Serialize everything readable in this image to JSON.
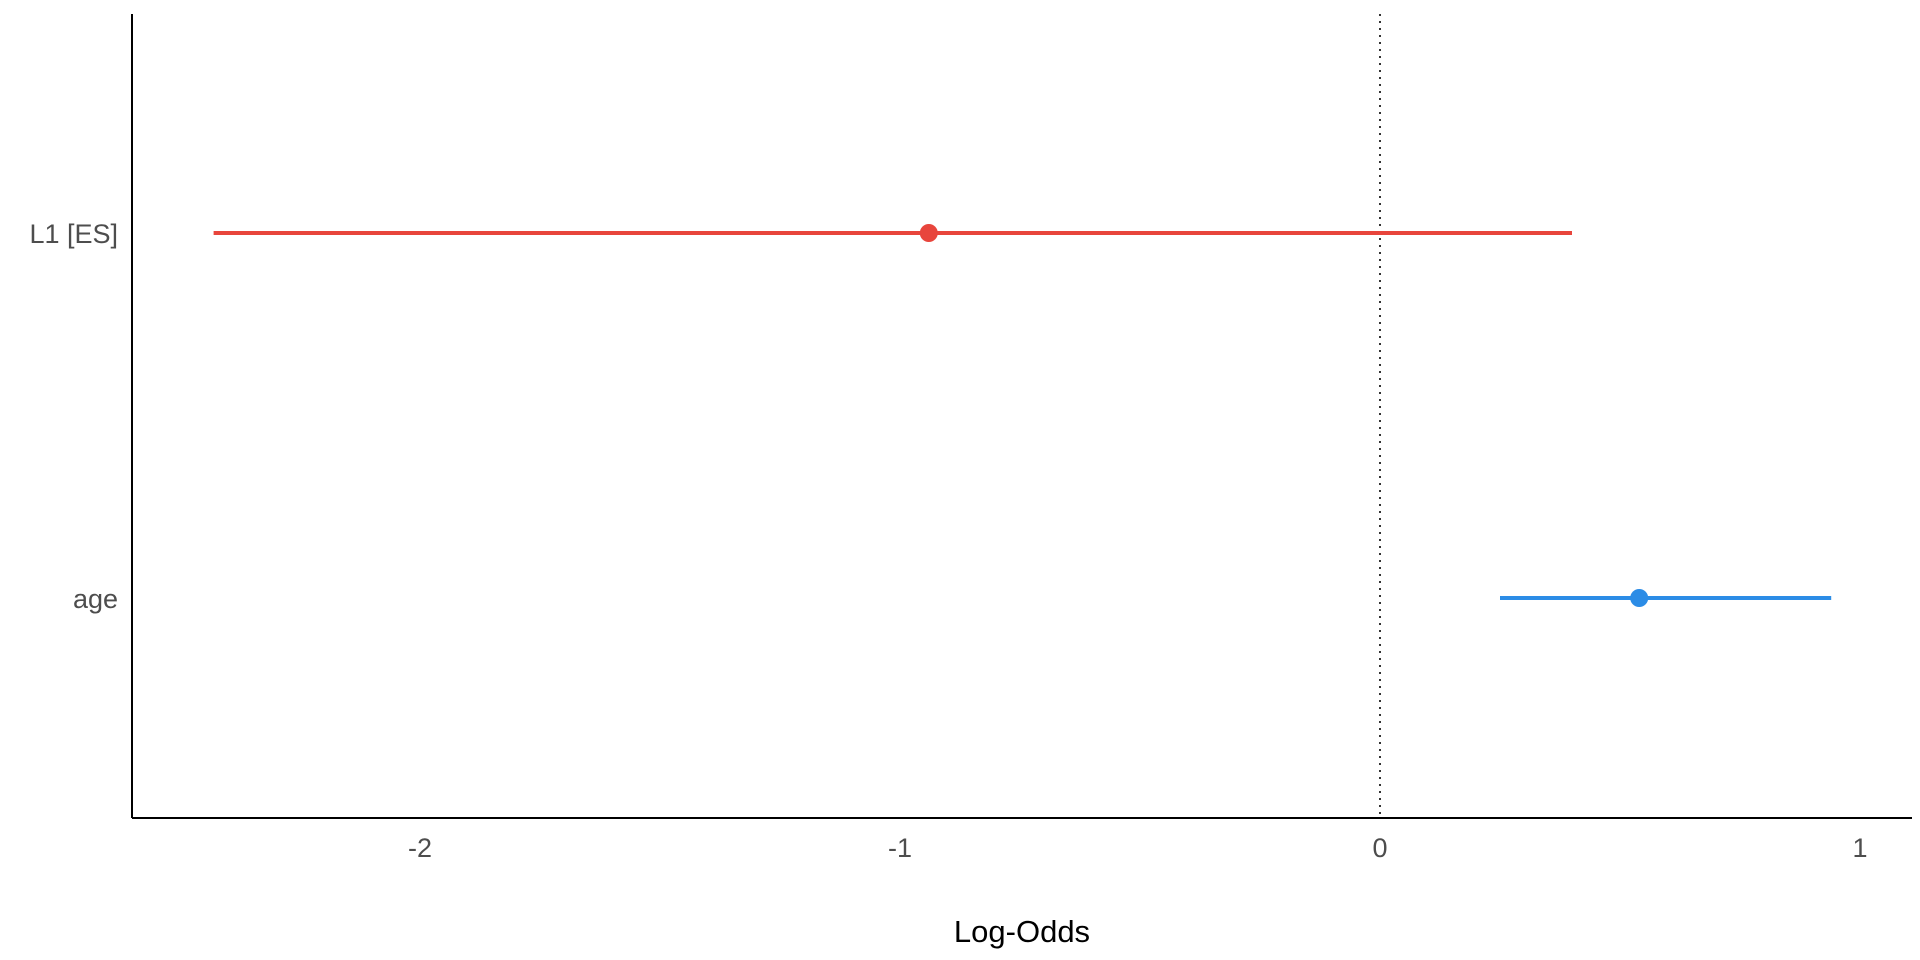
{
  "chart_data": {
    "type": "forest",
    "title": "",
    "xlabel": "Log-Odds",
    "ylabel": "",
    "xlim": [
      -2.6,
      1.1
    ],
    "x_ticks": [
      -2,
      -1,
      0,
      1
    ],
    "x_tick_labels": [
      "-2",
      "-1",
      "0",
      "1"
    ],
    "reference_line": 0,
    "grid": false,
    "legend": "none",
    "terms": [
      {
        "label": "L1 [ES]",
        "estimate": -0.94,
        "conf_low": -2.43,
        "conf_high": 0.4,
        "color": "#e8453c"
      },
      {
        "label": "age",
        "estimate": 0.54,
        "conf_low": 0.25,
        "conf_high": 0.94,
        "color": "#2b8ce6"
      }
    ]
  }
}
